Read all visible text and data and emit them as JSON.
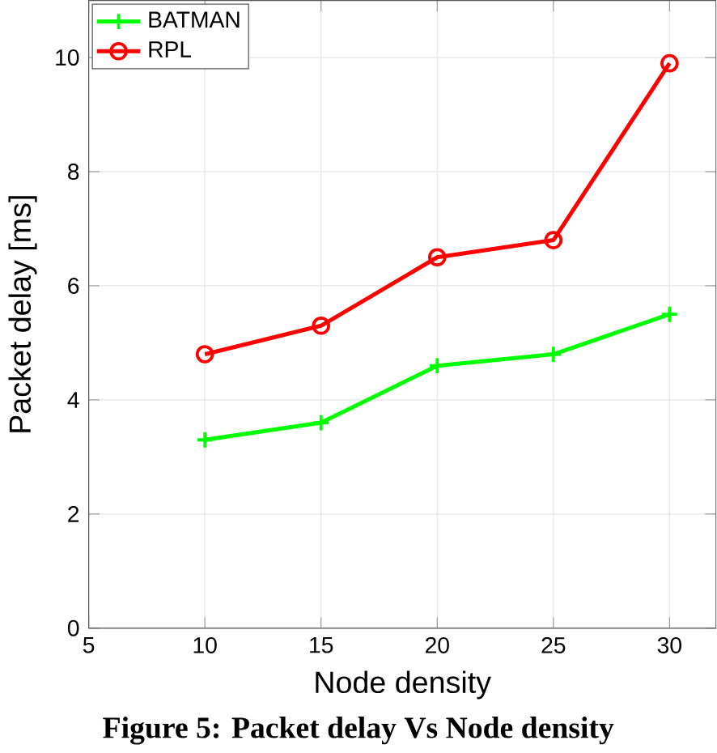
{
  "chart_data": {
    "type": "line",
    "xlabel": "Node density",
    "ylabel": "Packet delay [ms]",
    "x": [
      10,
      15,
      20,
      25,
      30
    ],
    "series": [
      {
        "name": "BATMAN",
        "color": "#00ff00",
        "marker": "cross",
        "values": [
          3.3,
          3.6,
          4.6,
          4.8,
          5.5
        ]
      },
      {
        "name": "RPL",
        "color": "#ff0000",
        "marker": "circle",
        "values": [
          4.8,
          5.3,
          6.5,
          6.8,
          9.9
        ]
      }
    ],
    "xlim": [
      5,
      32
    ],
    "ylim": [
      0,
      11
    ],
    "xticks": [
      5,
      10,
      15,
      20,
      25,
      30
    ],
    "yticks": [
      0,
      2,
      4,
      6,
      8,
      10
    ],
    "grid": true,
    "legend": "top left",
    "line_style": "solid",
    "annotations": [
      "Figure 5: Packet delay Vs Node density"
    ]
  }
}
